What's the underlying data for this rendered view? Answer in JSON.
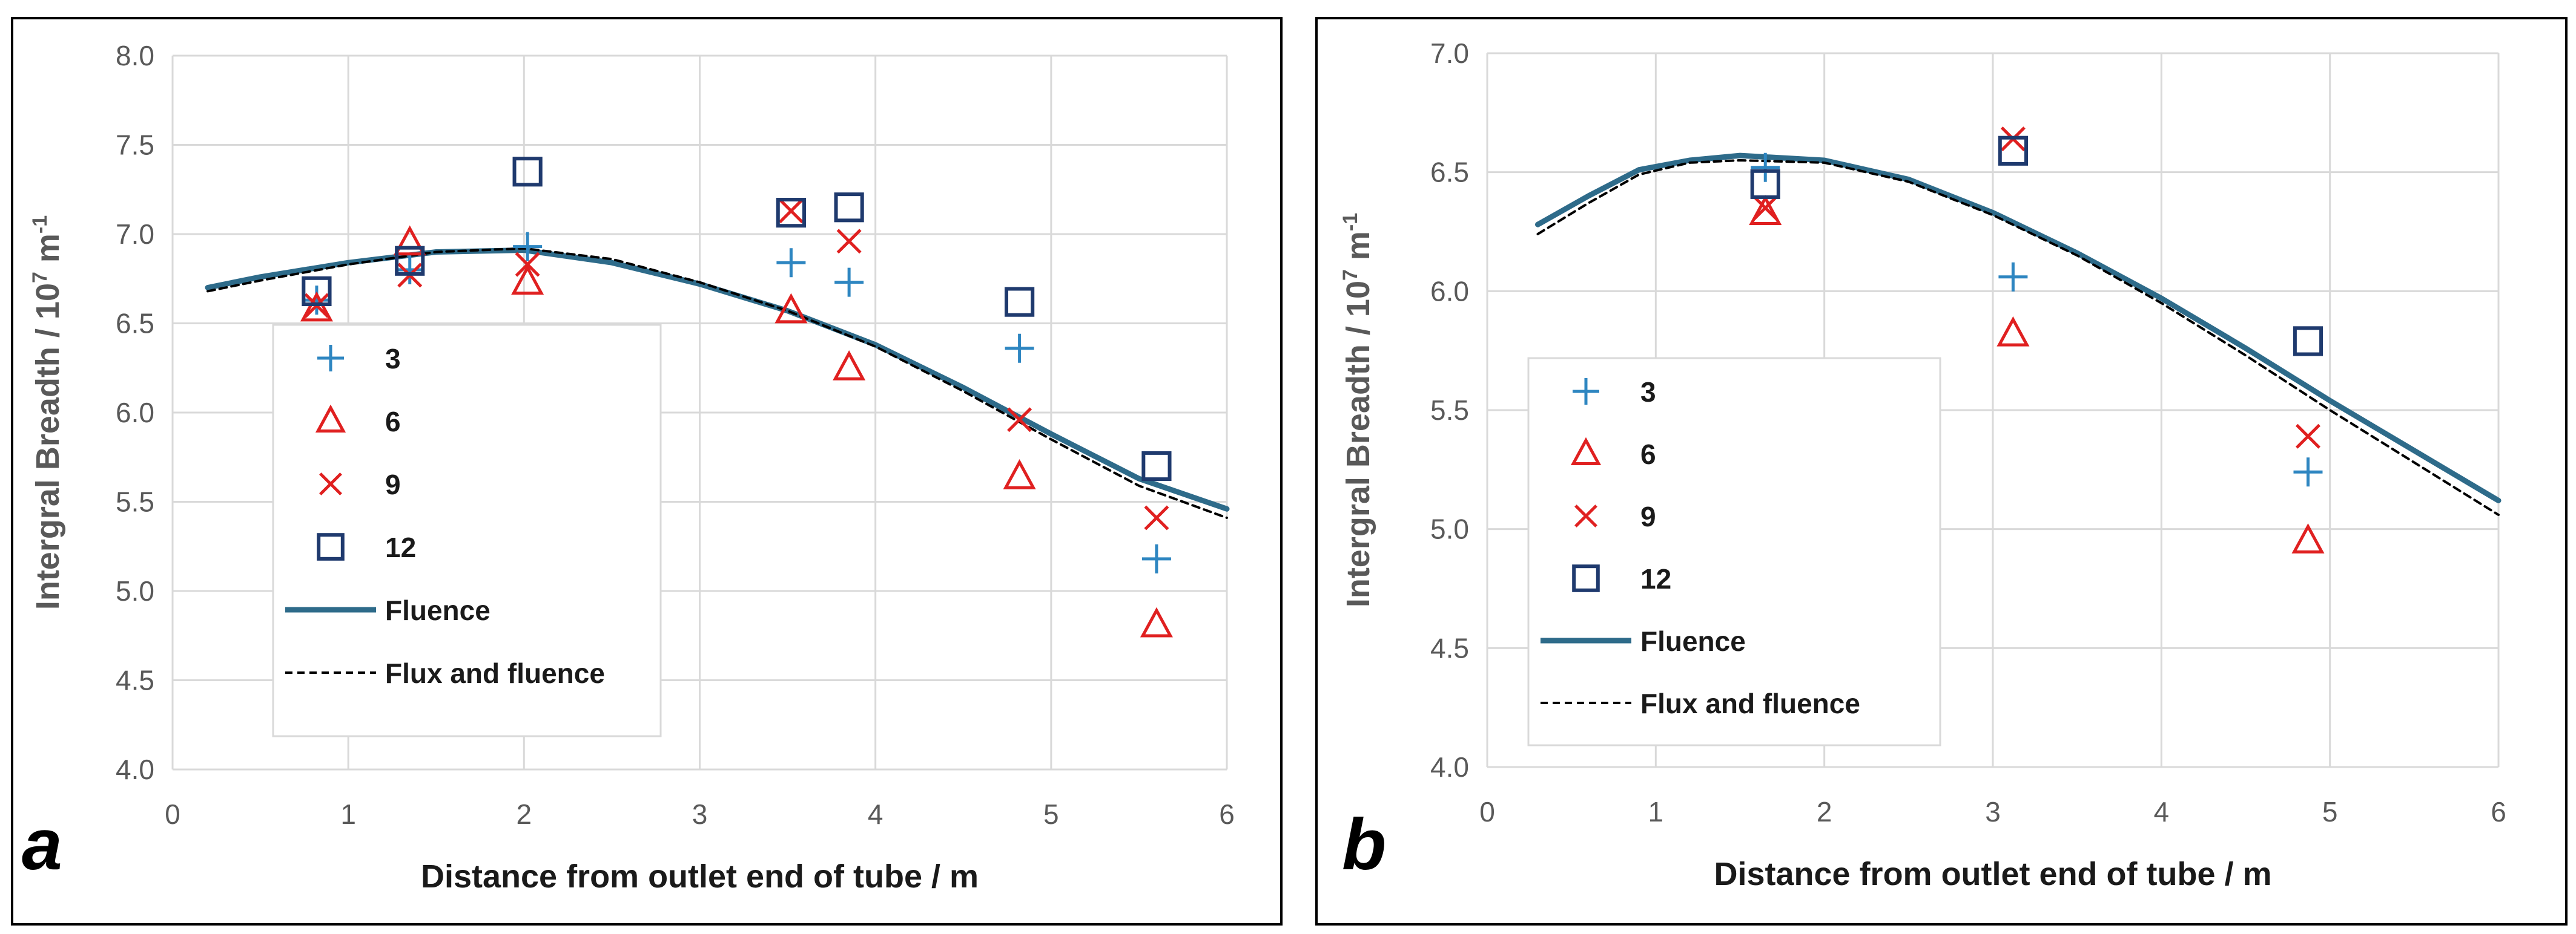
{
  "panels": [
    {
      "letter": "a",
      "chart_data": {
        "type": "scatter",
        "xlabel": "Distance from outlet end of tube  / m",
        "ylabel_main": "Intergral Breadth / 10",
        "ylabel_exp": "7",
        "ylabel_mid": " m",
        "ylabel_exp2": "-1",
        "xlim": [
          0,
          6
        ],
        "ylim": [
          4.0,
          8.0
        ],
        "xticks": [
          "0",
          "1",
          "2",
          "3",
          "4",
          "5",
          "6"
        ],
        "yticks": [
          "4.0",
          "4.5",
          "5.0",
          "5.5",
          "6.0",
          "6.5",
          "7.0",
          "7.5",
          "8.0"
        ],
        "grid": true,
        "legend_position": "left",
        "series": [
          {
            "name": "3",
            "marker": "plus",
            "color": "#2E86C1",
            "x": [
              0.82,
              1.35,
              2.02,
              3.52,
              3.85,
              4.82,
              5.6
            ],
            "y": [
              6.63,
              6.8,
              6.93,
              6.84,
              6.73,
              6.36,
              5.18
            ]
          },
          {
            "name": "6",
            "marker": "triangle",
            "color": "#E02020",
            "x": [
              0.82,
              1.35,
              2.02,
              3.52,
              3.85,
              4.82,
              5.6
            ],
            "y": [
              6.58,
              6.95,
              6.73,
              6.57,
              6.25,
              5.64,
              4.81
            ]
          },
          {
            "name": "9",
            "marker": "x",
            "color": "#E02020",
            "x": [
              0.82,
              1.35,
              2.02,
              3.52,
              3.85,
              4.82,
              5.6
            ],
            "y": [
              6.6,
              6.77,
              6.83,
              7.13,
              6.96,
              5.96,
              5.41
            ]
          },
          {
            "name": "12",
            "marker": "square",
            "color": "#1F3A6E",
            "x": [
              0.82,
              1.35,
              2.02,
              3.52,
              3.85,
              4.82,
              5.6
            ],
            "y": [
              6.68,
              6.85,
              7.35,
              7.12,
              7.15,
              6.62,
              5.7
            ]
          },
          {
            "name": "Fluence",
            "type": "line",
            "style": "solid",
            "color": "#2E6B8A",
            "x": [
              0.2,
              0.5,
              1.0,
              1.5,
              2.0,
              2.5,
              3.0,
              3.5,
              4.0,
              4.5,
              5.0,
              5.5,
              6.0
            ],
            "y": [
              6.7,
              6.76,
              6.84,
              6.9,
              6.91,
              6.84,
              6.72,
              6.57,
              6.38,
              6.14,
              5.88,
              5.63,
              5.46
            ]
          },
          {
            "name": "Flux and fluence",
            "type": "line",
            "style": "dashed",
            "color": "#000000",
            "x": [
              0.2,
              0.5,
              1.0,
              1.5,
              2.0,
              2.5,
              3.0,
              3.5,
              4.0,
              4.5,
              5.0,
              5.5,
              6.0
            ],
            "y": [
              6.68,
              6.74,
              6.83,
              6.9,
              6.92,
              6.86,
              6.73,
              6.57,
              6.37,
              6.12,
              5.85,
              5.59,
              5.41
            ]
          }
        ]
      }
    },
    {
      "letter": "b",
      "chart_data": {
        "type": "scatter",
        "xlabel": "Distance from outlet end of tube  / m",
        "ylabel_main": "Intergral Breadth / 10",
        "ylabel_exp": "7",
        "ylabel_mid": " m",
        "ylabel_exp2": "-1",
        "xlim": [
          0,
          6
        ],
        "ylim": [
          4.0,
          7.0
        ],
        "xticks": [
          "0",
          "1",
          "2",
          "3",
          "4",
          "5",
          "6"
        ],
        "yticks": [
          "4.0",
          "4.5",
          "5.0",
          "5.5",
          "6.0",
          "6.5",
          "7.0"
        ],
        "grid": true,
        "legend_position": "left",
        "series": [
          {
            "name": "3",
            "marker": "plus",
            "color": "#2E86C1",
            "x": [
              1.65,
              3.12,
              4.87
            ],
            "y": [
              6.52,
              6.06,
              5.24
            ]
          },
          {
            "name": "6",
            "marker": "triangle",
            "color": "#E02020",
            "x": [
              1.65,
              3.12,
              4.87
            ],
            "y": [
              6.33,
              5.82,
              4.95
            ]
          },
          {
            "name": "9",
            "marker": "x",
            "color": "#E02020",
            "x": [
              1.65,
              3.12,
              4.87
            ],
            "y": [
              6.35,
              6.64,
              5.39
            ]
          },
          {
            "name": "12",
            "marker": "square",
            "color": "#1F3A6E",
            "x": [
              1.65,
              3.12,
              4.87
            ],
            "y": [
              6.45,
              6.59,
              5.79
            ]
          },
          {
            "name": "Fluence",
            "type": "line",
            "style": "solid",
            "color": "#2E6B8A",
            "x": [
              0.3,
              0.6,
              0.9,
              1.2,
              1.5,
              2.0,
              2.5,
              3.0,
              3.5,
              4.0,
              4.5,
              5.0,
              5.5,
              6.0
            ],
            "y": [
              6.28,
              6.4,
              6.51,
              6.55,
              6.57,
              6.55,
              6.47,
              6.33,
              6.16,
              5.97,
              5.76,
              5.54,
              5.33,
              5.12
            ]
          },
          {
            "name": "Flux and fluence",
            "type": "line",
            "style": "dashed",
            "color": "#000000",
            "x": [
              0.3,
              0.6,
              0.9,
              1.2,
              1.5,
              2.0,
              2.5,
              3.0,
              3.5,
              4.0,
              4.5,
              5.0,
              5.5,
              6.0
            ],
            "y": [
              6.24,
              6.37,
              6.49,
              6.54,
              6.55,
              6.54,
              6.46,
              6.32,
              6.15,
              5.95,
              5.73,
              5.5,
              5.28,
              5.06
            ]
          }
        ]
      }
    }
  ]
}
